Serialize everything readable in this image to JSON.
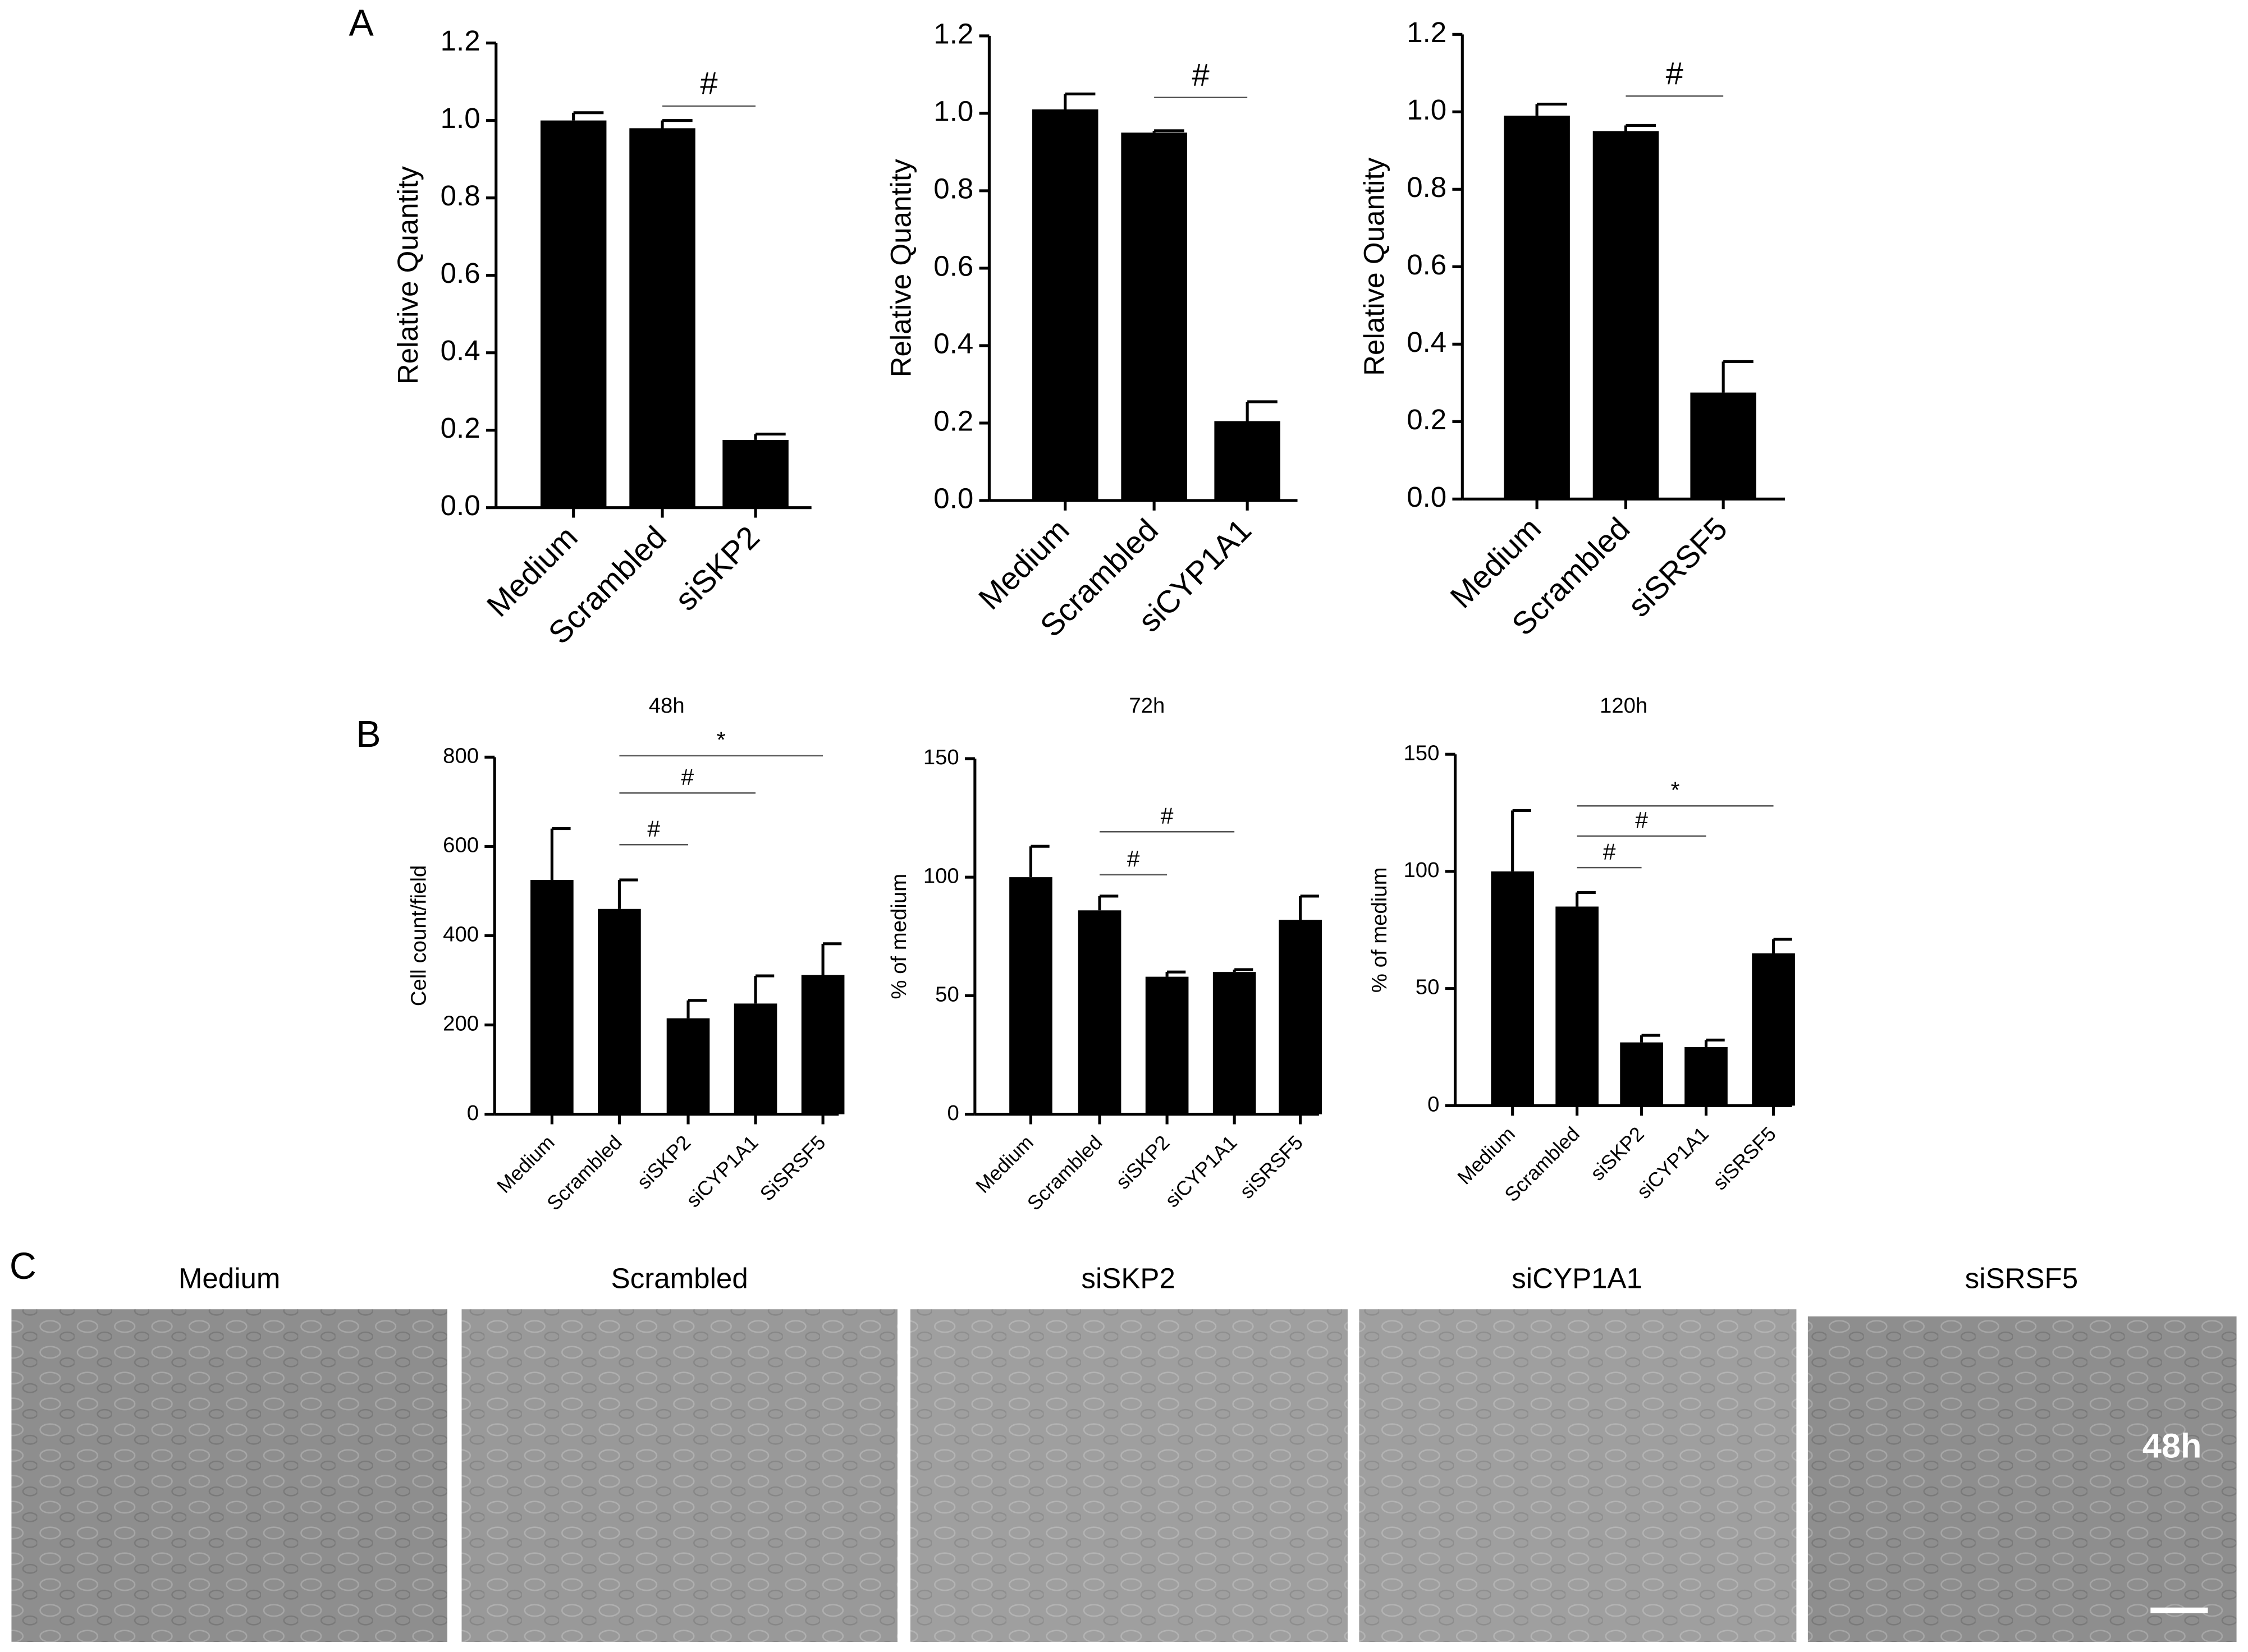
{
  "panels": [
    "A",
    "B",
    "C"
  ],
  "chart_data": [
    {
      "type": "bar",
      "y_label": "Relative Quantity",
      "categories": [
        "Medium",
        "Scrambled",
        "siSKP2"
      ],
      "values": [
        1.0,
        0.98,
        0.175
      ],
      "errors": [
        0.02,
        0.02,
        0.015
      ],
      "color": "#000000",
      "ylim": [
        0,
        1.2
      ],
      "yticks": [
        {
          "value": 0,
          "label": "0.0"
        },
        {
          "value": 0.2,
          "label": "0.2"
        },
        {
          "value": 0.4,
          "label": "0.4"
        },
        {
          "value": 0.6,
          "label": "0.6"
        },
        {
          "value": 0.8,
          "label": "0.8"
        },
        {
          "value": 1.0,
          "label": "1.0"
        },
        {
          "value": 1.2,
          "label": "1.2"
        }
      ],
      "annotations": [
        {
          "text": "#",
          "pair": [
            1,
            2
          ]
        }
      ]
    },
    {
      "type": "bar",
      "y_label": "Relative Quantity",
      "categories": [
        "Medium",
        "Scrambled",
        "siCYP1A1"
      ],
      "values": [
        1.01,
        0.95,
        0.205
      ],
      "errors": [
        0.04,
        0.005,
        0.05
      ],
      "color": "#000000",
      "ylim": [
        0,
        1.2
      ],
      "yticks": [
        {
          "value": 0,
          "label": "0.0"
        },
        {
          "value": 0.2,
          "label": "0.2"
        },
        {
          "value": 0.4,
          "label": "0.4"
        },
        {
          "value": 0.6,
          "label": "0.6"
        },
        {
          "value": 0.8,
          "label": "0.8"
        },
        {
          "value": 1.0,
          "label": "1.0"
        },
        {
          "value": 1.2,
          "label": "1.2"
        }
      ],
      "annotations": [
        {
          "text": "#",
          "pair": [
            1,
            2
          ]
        }
      ]
    },
    {
      "type": "bar",
      "y_label": "Relative Quantity",
      "categories": [
        "Medium",
        "Scrambled",
        "siSRSF5"
      ],
      "values": [
        0.99,
        0.95,
        0.275
      ],
      "errors": [
        0.03,
        0.015,
        0.08
      ],
      "color": "#000000",
      "ylim": [
        0,
        1.2
      ],
      "yticks": [
        {
          "value": 0,
          "label": "0.0"
        },
        {
          "value": 0.2,
          "label": "0.2"
        },
        {
          "value": 0.4,
          "label": "0.4"
        },
        {
          "value": 0.6,
          "label": "0.6"
        },
        {
          "value": 0.8,
          "label": "0.8"
        },
        {
          "value": 1.0,
          "label": "1.0"
        },
        {
          "value": 1.2,
          "label": "1.2"
        }
      ],
      "annotations": [
        {
          "text": "#",
          "pair": [
            1,
            2
          ]
        }
      ]
    },
    {
      "type": "bar",
      "title": "48h",
      "y_label": "Cell count/field",
      "categories": [
        "Medium",
        "Scrambled",
        "siSKP2",
        "siCYP1A1",
        "SiSRSF5"
      ],
      "values": [
        525,
        460,
        215,
        248,
        312
      ],
      "errors": [
        115,
        65,
        40,
        62,
        70
      ],
      "color": "#000000",
      "ylim": [
        0,
        800
      ],
      "yticks": [
        0,
        200,
        400,
        600,
        800
      ],
      "annotations": [
        {
          "text": "#",
          "pair": [
            1,
            2
          ]
        },
        {
          "text": "#",
          "pair": [
            1,
            3
          ]
        },
        {
          "text": "*",
          "pair": [
            1,
            4
          ]
        }
      ]
    },
    {
      "type": "bar",
      "title": "72h",
      "y_label": "% of medium",
      "categories": [
        "Medium",
        "Scrambled",
        "siSKP2",
        "siCYP1A1",
        "siSRSF5"
      ],
      "values": [
        100,
        86,
        58,
        60,
        82
      ],
      "errors": [
        13,
        6,
        2,
        1,
        10
      ],
      "color": "#000000",
      "ylim": [
        0,
        150
      ],
      "yticks": [
        0,
        50,
        100,
        150
      ],
      "annotations": [
        {
          "text": "#",
          "pair": [
            1,
            2
          ]
        },
        {
          "text": "#",
          "pair": [
            1,
            3
          ]
        }
      ]
    },
    {
      "type": "bar",
      "title": "120h",
      "y_label": "% of medium",
      "categories": [
        "Medium",
        "Scrambled",
        "siSKP2",
        "siCYP1A1",
        "siSRSF5"
      ],
      "values": [
        100,
        85,
        27,
        25,
        65
      ],
      "errors": [
        26,
        6,
        3,
        3,
        6
      ],
      "color": "#000000",
      "ylim": [
        0,
        150
      ],
      "yticks": [
        0,
        50,
        100,
        150
      ],
      "annotations": [
        {
          "text": "#",
          "pair": [
            1,
            2
          ]
        },
        {
          "text": "#",
          "pair": [
            1,
            3
          ]
        },
        {
          "text": "*",
          "pair": [
            1,
            4
          ]
        }
      ]
    }
  ],
  "panel_c": {
    "labels": [
      "Medium",
      "Scrambled",
      "siSKP2",
      "siCYP1A1",
      "siSRSF5"
    ],
    "overlay": "48h"
  }
}
